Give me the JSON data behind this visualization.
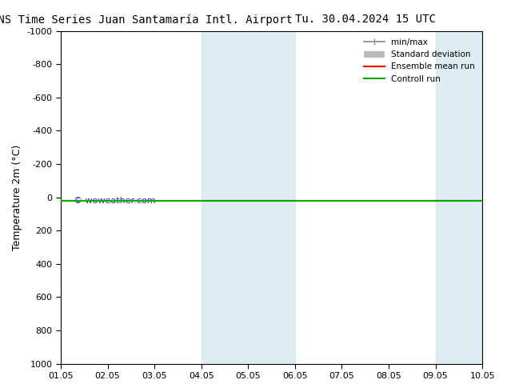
{
  "title_left": "ENS Time Series Juan Santamaría Intl. Airport",
  "title_right": "Tu. 30.04.2024 15 UTC",
  "ylabel": "Temperature 2m (°C)",
  "ylim": [
    -1000,
    1000
  ],
  "xlim": [
    0,
    9
  ],
  "xtick_labels": [
    "01.05",
    "02.05",
    "03.05",
    "04.05",
    "05.05",
    "06.05",
    "07.05",
    "08.05",
    "09.05",
    "10.05"
  ],
  "ytick_values": [
    -1000,
    -800,
    -600,
    -400,
    -200,
    0,
    200,
    400,
    600,
    800,
    1000
  ],
  "background_color": "#ffffff",
  "plot_bg_color": "#ffffff",
  "shaded_bands": [
    {
      "xstart": 3,
      "xend": 5,
      "color": "#d0e4f0",
      "alpha": 0.7
    },
    {
      "xstart": 8,
      "xend": 9,
      "color": "#d0e4f0",
      "alpha": 0.7
    }
  ],
  "green_line_y": 20,
  "red_line_y": 20,
  "watermark": "© woweather.com",
  "watermark_color": "#0000cc",
  "legend_entries": [
    {
      "label": "min/max",
      "color": "#888888",
      "lw": 1.2,
      "ls": "-"
    },
    {
      "label": "Standard deviation",
      "color": "#bbbbbb",
      "lw": 6,
      "ls": "-"
    },
    {
      "label": "Ensemble mean run",
      "color": "#ff0000",
      "lw": 1.5,
      "ls": "-"
    },
    {
      "label": "Controll run",
      "color": "#00aa00",
      "lw": 1.5,
      "ls": "-"
    }
  ],
  "title_fontsize": 10,
  "axis_fontsize": 9,
  "tick_fontsize": 8
}
